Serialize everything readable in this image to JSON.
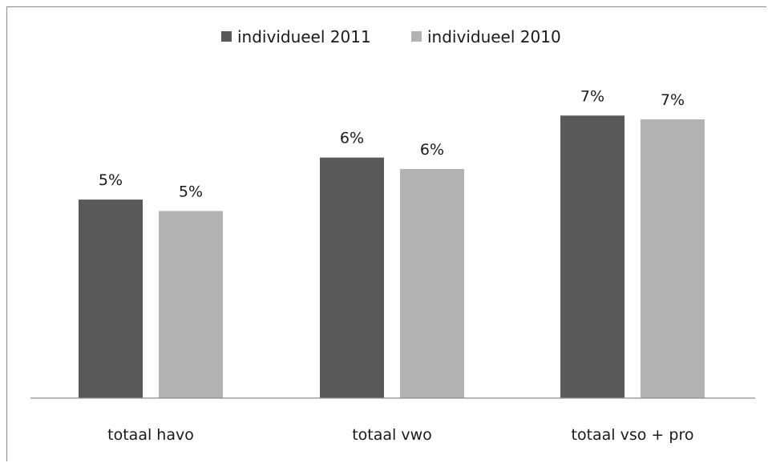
{
  "chart_data": {
    "type": "bar",
    "title": "",
    "xlabel": "",
    "ylabel": "",
    "categories": [
      "totaal havo",
      "totaal vwo",
      "totaal vso + pro"
    ],
    "series": [
      {
        "name": "individueel 2011",
        "color": "#595959",
        "values": [
          5.2,
          6.3,
          7.4
        ],
        "labels": [
          "5%",
          "6%",
          "7%"
        ]
      },
      {
        "name": "individueel 2010",
        "color": "#b2b2b2",
        "values": [
          4.9,
          6.0,
          7.3
        ],
        "labels": [
          "5%",
          "6%",
          "7%"
        ]
      }
    ],
    "ylim": [
      0,
      9
    ],
    "legend_position": "top",
    "grid": false
  }
}
